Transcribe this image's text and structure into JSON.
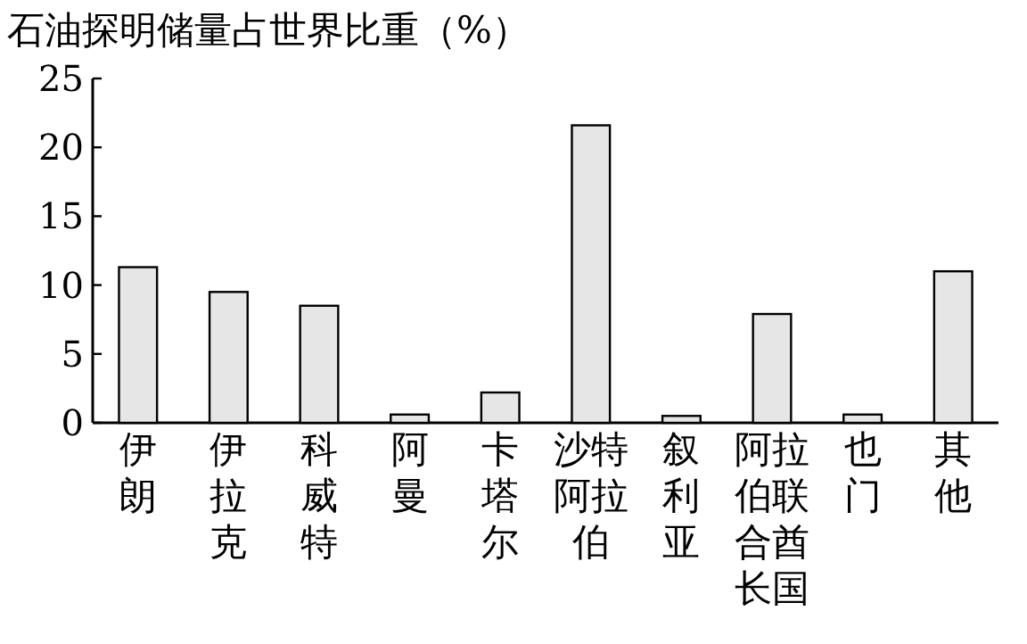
{
  "chart_data": {
    "type": "bar",
    "title": "石油探明储量占世界比重（%）",
    "categories": [
      "伊朗",
      "伊拉克",
      "科威特",
      "阿曼",
      "卡塔尔",
      "沙特阿拉伯",
      "叙利亚",
      "阿拉伯联合酋长国",
      "也门",
      "其他"
    ],
    "values": [
      11.3,
      9.5,
      8.5,
      0.6,
      2.2,
      21.6,
      0.5,
      7.9,
      0.6,
      11.0
    ],
    "color": "#e6e6e6",
    "ylim": [
      0,
      25
    ],
    "yticks": [
      0,
      5,
      10,
      15,
      20,
      25
    ],
    "grid": false
  }
}
